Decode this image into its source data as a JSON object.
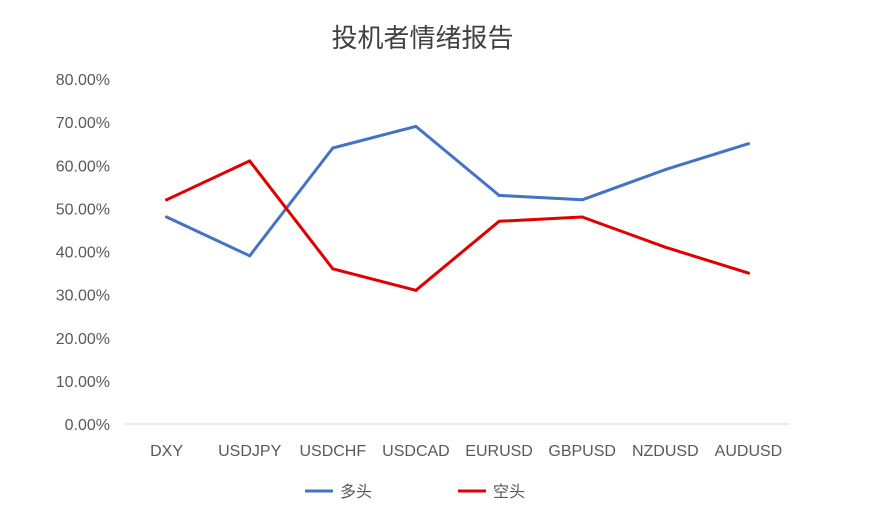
{
  "chart_data": {
    "type": "line",
    "title": "投机者情绪报告",
    "categories": [
      "DXY",
      "USDJPY",
      "USDCHF",
      "USDCAD",
      "EURUSD",
      "GBPUSD",
      "NZDUSD",
      "AUDUSD"
    ],
    "series": [
      {
        "name": "多头",
        "color": "#4472C4",
        "values": [
          0.48,
          0.39,
          0.64,
          0.69,
          0.53,
          0.52,
          0.59,
          0.65
        ]
      },
      {
        "name": "空头",
        "color": "#E00000",
        "values": [
          0.52,
          0.61,
          0.36,
          0.31,
          0.47,
          0.48,
          0.41,
          0.35
        ]
      }
    ],
    "y_ticks": [
      "0.00%",
      "10.00%",
      "20.00%",
      "30.00%",
      "40.00%",
      "50.00%",
      "60.00%",
      "70.00%",
      "80.00%"
    ],
    "ylim": [
      0,
      0.8
    ],
    "xlabel": "",
    "ylabel": "",
    "grid": false,
    "legend_position": "bottom"
  }
}
